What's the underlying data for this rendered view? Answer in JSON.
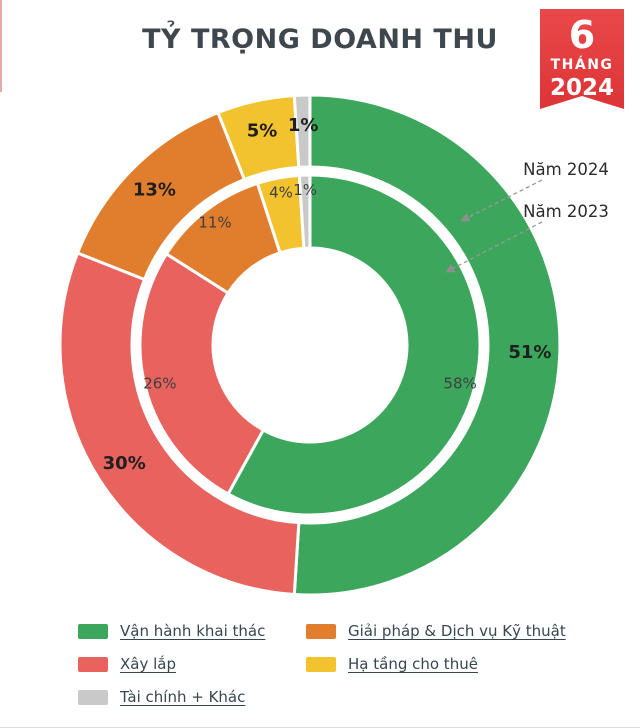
{
  "page": {
    "title": "TỶ TRỌNG DOANH THU",
    "badge": {
      "line1": "6",
      "line2": "THÁNG",
      "line3": "2024",
      "color": "#E13B3D"
    }
  },
  "chart_data": {
    "type": "pie",
    "variant": "nested-donut",
    "title": "TỶ TRỌNG DOANH THU",
    "categories": [
      "Vận hành khai thác",
      "Xây lắp",
      "Giải pháp & Dịch vụ Kỹ thuật",
      "Hạ tầng cho thuê",
      "Tài chính + Khác"
    ],
    "colors": [
      "#3CA75C",
      "#E8625E",
      "#E07E2E",
      "#F3C32F",
      "#C9C9C9"
    ],
    "series": [
      {
        "name": "Năm 2024",
        "ring": "outer",
        "values": [
          51,
          30,
          13,
          5,
          1
        ]
      },
      {
        "name": "Năm 2023",
        "ring": "inner",
        "values": [
          58,
          26,
          11,
          4,
          1
        ]
      }
    ],
    "start_angle_deg": 0,
    "direction": "clockwise",
    "legend_position": "bottom"
  },
  "annotations": {
    "outer_ring_label": "Năm 2024",
    "inner_ring_label": "Năm 2023"
  },
  "legend": {
    "items": [
      {
        "label": "Vận hành khai thác",
        "color": "#3CA75C"
      },
      {
        "label": "Giải pháp & Dịch vụ Kỹ thuật",
        "color": "#E07E2E"
      },
      {
        "label": "Xây lắp",
        "color": "#E8625E"
      },
      {
        "label": "Hạ tầng cho thuê",
        "color": "#F3C32F"
      },
      {
        "label": "Tài chính + Khác",
        "color": "#C9C9C9"
      }
    ]
  }
}
